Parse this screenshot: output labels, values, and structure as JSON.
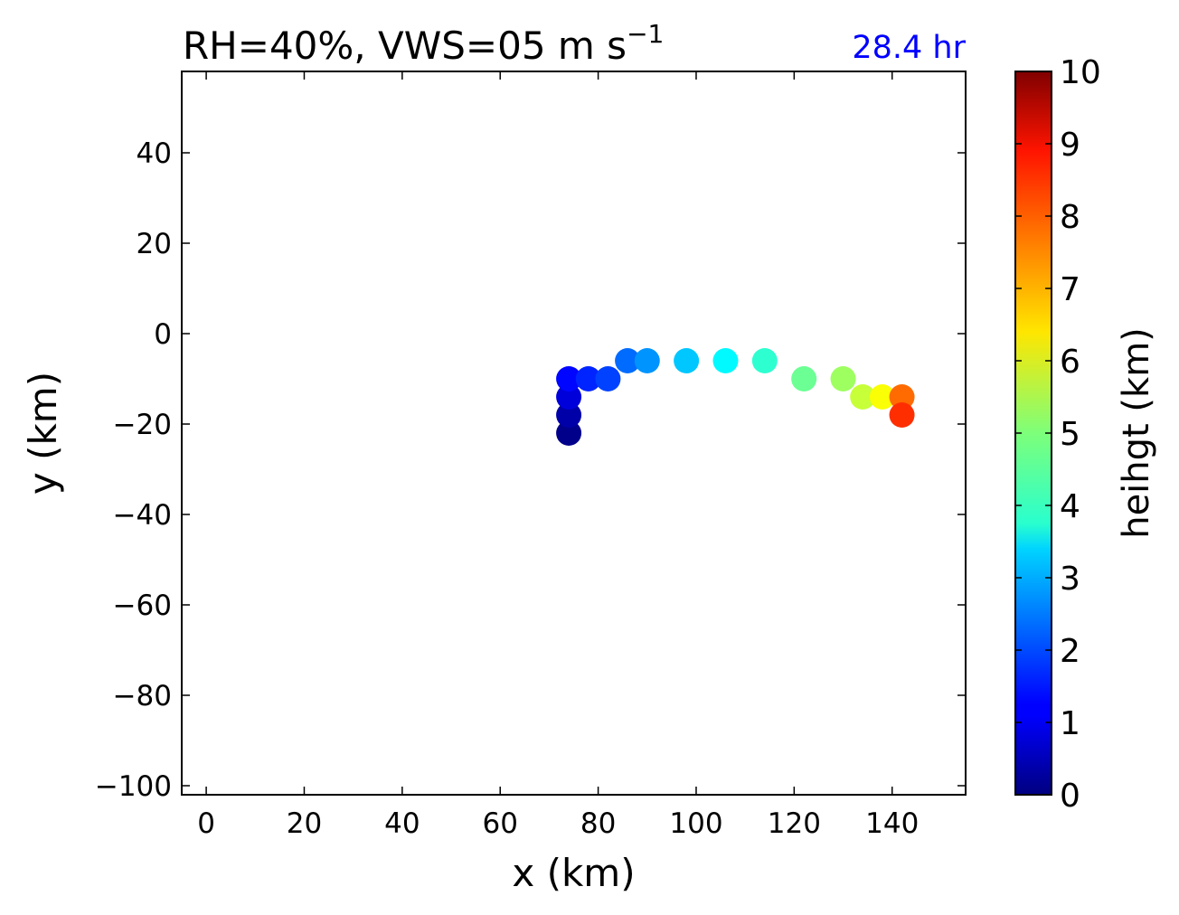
{
  "chart_data": {
    "type": "scatter",
    "title": {
      "main": "RH=40%, VWS=05 m s",
      "superscript": "−1"
    },
    "time_label": "28.4 hr",
    "time_label_color": "#0000ff",
    "xlabel": "x (km)",
    "ylabel": "y (km)",
    "xlim": [
      -5,
      155
    ],
    "ylim": [
      -102,
      58
    ],
    "xticks": [
      0,
      20,
      40,
      60,
      80,
      100,
      120,
      140
    ],
    "yticks": [
      40,
      20,
      0,
      -20,
      -40,
      -60,
      -80,
      -100
    ],
    "xtick_labels": [
      "0",
      "20",
      "40",
      "60",
      "80",
      "100",
      "120",
      "140"
    ],
    "ytick_labels": [
      "40",
      "20",
      "0",
      "−20",
      "−40",
      "−60",
      "−80",
      "−100"
    ],
    "colorbar": {
      "label": "heihgt (km)",
      "range": [
        0,
        10
      ],
      "colormap": "jet",
      "ticks": [
        0,
        1,
        2,
        3,
        4,
        5,
        6,
        7,
        8,
        9,
        10
      ],
      "tick_labels": [
        "0",
        "1",
        "2",
        "3",
        "4",
        "5",
        "6",
        "7",
        "8",
        "9",
        "10"
      ]
    },
    "points": [
      {
        "x": 74,
        "y": -22,
        "height": 0.1
      },
      {
        "x": 74,
        "y": -18,
        "height": 0.4
      },
      {
        "x": 74,
        "y": -14,
        "height": 0.9
      },
      {
        "x": 74,
        "y": -10,
        "height": 1.3
      },
      {
        "x": 78,
        "y": -10,
        "height": 1.6
      },
      {
        "x": 82,
        "y": -10,
        "height": 1.9
      },
      {
        "x": 86,
        "y": -6,
        "height": 2.3
      },
      {
        "x": 90,
        "y": -6,
        "height": 2.7
      },
      {
        "x": 98,
        "y": -6,
        "height": 3.2
      },
      {
        "x": 106,
        "y": -6,
        "height": 3.7
      },
      {
        "x": 114,
        "y": -6,
        "height": 4.2
      },
      {
        "x": 122,
        "y": -10,
        "height": 4.8
      },
      {
        "x": 130,
        "y": -10,
        "height": 5.3
      },
      {
        "x": 134,
        "y": -14,
        "height": 5.7
      },
      {
        "x": 138,
        "y": -14,
        "height": 6.2
      },
      {
        "x": 142,
        "y": -14,
        "height": 7.7
      },
      {
        "x": 142,
        "y": -18,
        "height": 8.3
      }
    ]
  }
}
